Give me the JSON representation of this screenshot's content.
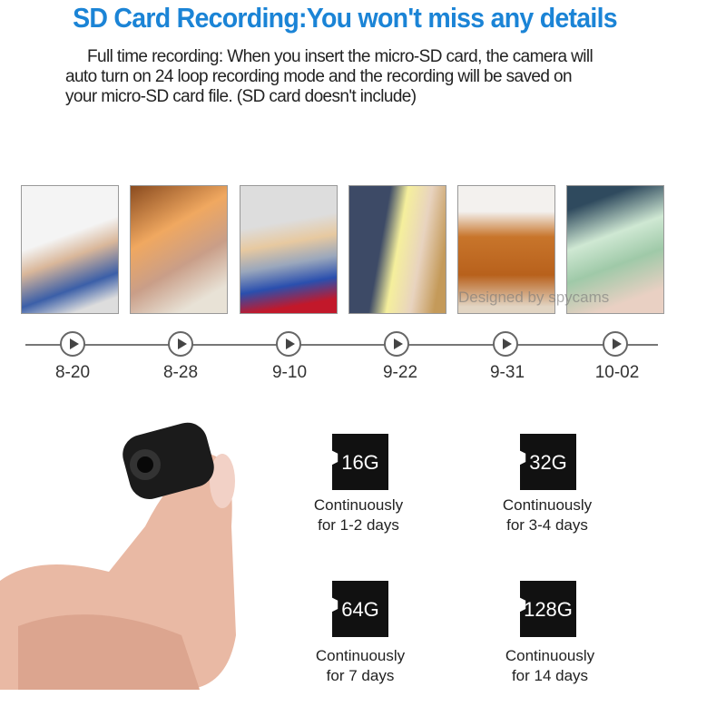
{
  "title": "SD Card Recording:You won't miss any details",
  "description": {
    "lines": [
      "Full time recording: When you insert the micro-SD card, the camera will",
      "auto turn on 24 loop recording mode and the recording will be saved on",
      "your micro-SD card file. (SD card doesn't include)"
    ]
  },
  "watermark": "Designed by spycams",
  "timeline": {
    "dates": [
      "8-20",
      "8-28",
      "9-10",
      "9-22",
      "9-31",
      "10-02"
    ]
  },
  "cards": [
    {
      "capacity": "16G",
      "line1": "Continuously",
      "line2": "for 1-2 days"
    },
    {
      "capacity": "32G",
      "line1": "Continuously",
      "line2": "for 3-4 days"
    },
    {
      "capacity": "64G",
      "line1": "Continuously",
      "line2": "for 7 days"
    },
    {
      "capacity": "128G",
      "line1": "Continuously",
      "line2": "for 14 days"
    }
  ],
  "colors": {
    "title": "#1b84d6"
  }
}
